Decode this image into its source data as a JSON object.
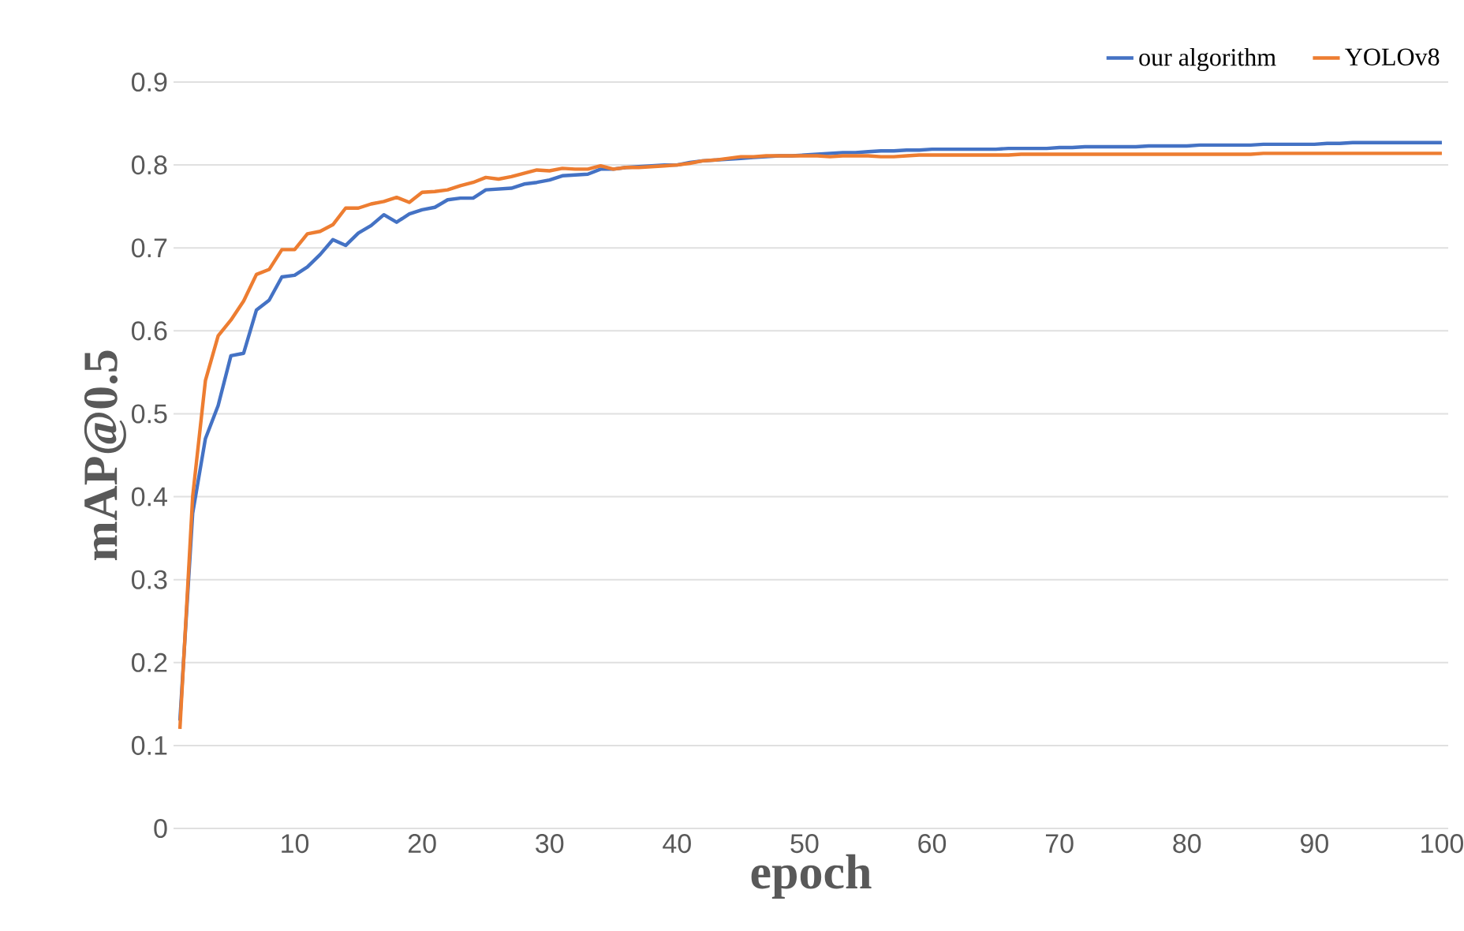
{
  "chart_data": {
    "type": "line",
    "xlabel": "epoch",
    "ylabel": "mAP@0.5",
    "x": [
      1,
      2,
      3,
      4,
      5,
      6,
      7,
      8,
      9,
      10,
      11,
      12,
      13,
      14,
      15,
      16,
      17,
      18,
      19,
      20,
      21,
      22,
      23,
      24,
      25,
      26,
      27,
      28,
      29,
      30,
      31,
      32,
      33,
      34,
      35,
      36,
      37,
      38,
      39,
      40,
      41,
      42,
      43,
      44,
      45,
      46,
      47,
      48,
      49,
      50,
      51,
      52,
      53,
      54,
      55,
      56,
      57,
      58,
      59,
      60,
      61,
      62,
      63,
      64,
      65,
      66,
      67,
      68,
      69,
      70,
      71,
      72,
      73,
      74,
      75,
      76,
      77,
      78,
      79,
      80,
      81,
      82,
      83,
      84,
      85,
      86,
      87,
      88,
      89,
      90,
      91,
      92,
      93,
      94,
      95,
      96,
      97,
      98,
      99,
      100
    ],
    "series": [
      {
        "name": "our algorithm",
        "color": "#4472c4",
        "values": [
          0.13,
          0.38,
          0.47,
          0.51,
          0.57,
          0.573,
          0.625,
          0.637,
          0.665,
          0.667,
          0.677,
          0.692,
          0.71,
          0.703,
          0.718,
          0.727,
          0.74,
          0.731,
          0.741,
          0.746,
          0.749,
          0.758,
          0.76,
          0.76,
          0.77,
          0.771,
          0.772,
          0.777,
          0.779,
          0.782,
          0.787,
          0.788,
          0.789,
          0.795,
          0.795,
          0.797,
          0.798,
          0.799,
          0.8,
          0.8,
          0.803,
          0.805,
          0.806,
          0.807,
          0.808,
          0.809,
          0.81,
          0.811,
          0.811,
          0.812,
          0.813,
          0.814,
          0.815,
          0.815,
          0.816,
          0.817,
          0.817,
          0.818,
          0.818,
          0.819,
          0.819,
          0.819,
          0.819,
          0.819,
          0.819,
          0.82,
          0.82,
          0.82,
          0.82,
          0.821,
          0.821,
          0.822,
          0.822,
          0.822,
          0.822,
          0.822,
          0.823,
          0.823,
          0.823,
          0.823,
          0.824,
          0.824,
          0.824,
          0.824,
          0.824,
          0.825,
          0.825,
          0.825,
          0.825,
          0.825,
          0.826,
          0.826,
          0.827,
          0.827,
          0.827,
          0.827,
          0.827,
          0.827,
          0.827,
          0.827
        ]
      },
      {
        "name": "YOLOv8",
        "color": "#ed7d31",
        "values": [
          0.12,
          0.4,
          0.54,
          0.594,
          0.613,
          0.636,
          0.668,
          0.674,
          0.698,
          0.698,
          0.717,
          0.72,
          0.728,
          0.748,
          0.748,
          0.753,
          0.756,
          0.761,
          0.755,
          0.767,
          0.768,
          0.77,
          0.775,
          0.779,
          0.785,
          0.783,
          0.786,
          0.79,
          0.794,
          0.793,
          0.796,
          0.795,
          0.795,
          0.799,
          0.795,
          0.797,
          0.797,
          0.798,
          0.799,
          0.8,
          0.802,
          0.805,
          0.806,
          0.808,
          0.81,
          0.81,
          0.811,
          0.811,
          0.811,
          0.811,
          0.811,
          0.81,
          0.811,
          0.811,
          0.811,
          0.81,
          0.81,
          0.811,
          0.812,
          0.812,
          0.812,
          0.812,
          0.812,
          0.812,
          0.812,
          0.812,
          0.813,
          0.813,
          0.813,
          0.813,
          0.813,
          0.813,
          0.813,
          0.813,
          0.813,
          0.813,
          0.813,
          0.813,
          0.813,
          0.813,
          0.813,
          0.813,
          0.813,
          0.813,
          0.813,
          0.814,
          0.814,
          0.814,
          0.814,
          0.814,
          0.814,
          0.814,
          0.814,
          0.814,
          0.814,
          0.814,
          0.814,
          0.814,
          0.814,
          0.814
        ]
      }
    ],
    "xlim": [
      0.5,
      100.5
    ],
    "xticks": [
      10,
      20,
      30,
      40,
      50,
      60,
      70,
      80,
      90,
      100
    ],
    "ylim": [
      0,
      0.9
    ],
    "yticks": [
      0,
      0.1,
      0.2,
      0.3,
      0.4,
      0.5,
      0.6,
      0.7,
      0.8,
      0.9
    ],
    "grid": "y",
    "legend": "top right",
    "marker": "none",
    "line_style": "solid"
  }
}
